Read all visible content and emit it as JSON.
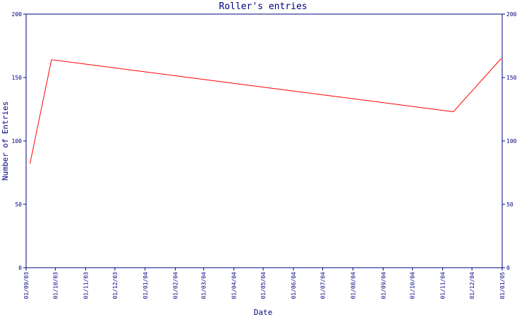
{
  "chart_data": {
    "type": "line",
    "title": "Roller's entries",
    "xlabel": "Date",
    "ylabel": "Number of Entries",
    "ylim": [
      0,
      200
    ],
    "yticks": [
      "0",
      "50",
      "100",
      "150",
      "200"
    ],
    "xticks": [
      "01/09/03",
      "01/10/03",
      "01/11/03",
      "01/12/03",
      "01/01/04",
      "01/02/04",
      "01/03/04",
      "01/04/04",
      "01/05/04",
      "01/06/04",
      "01/07/04",
      "01/08/04",
      "01/09/04",
      "01/10/04",
      "01/11/04",
      "01/12/04",
      "01/01/05"
    ],
    "xlim": [
      "2003-09-01",
      "2005-01-01"
    ],
    "grid": false,
    "series": [
      {
        "color": "#ff0000",
        "points": [
          {
            "x": "2003-09-05",
            "y": 82
          },
          {
            "x": "2003-09-27",
            "y": 164
          },
          {
            "x": "2004-11-12",
            "y": 123
          },
          {
            "x": "2004-12-31",
            "y": 165
          }
        ]
      }
    ]
  },
  "colors": {
    "axis": "#000080",
    "text": "#000080",
    "line": "#ff0000",
    "background": "#ffffff"
  }
}
